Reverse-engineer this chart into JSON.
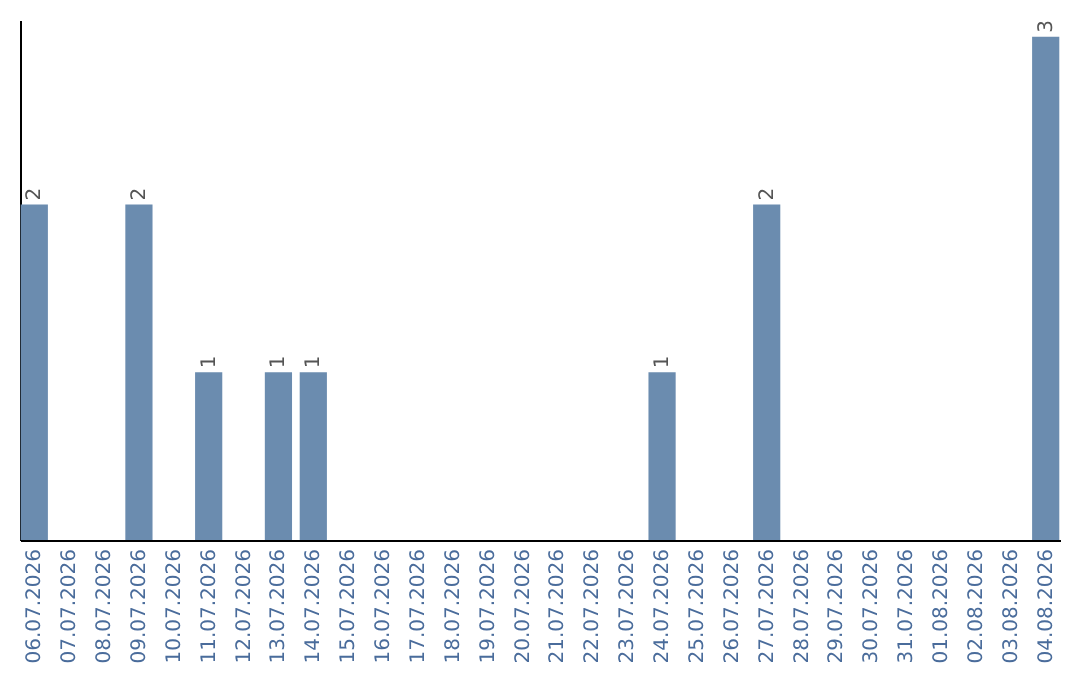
{
  "chart_data": {
    "type": "bar",
    "categories": [
      "06.07.2026",
      "07.07.2026",
      "08.07.2026",
      "09.07.2026",
      "10.07.2026",
      "11.07.2026",
      "12.07.2026",
      "13.07.2026",
      "14.07.2026",
      "15.07.2026",
      "16.07.2026",
      "17.07.2026",
      "18.07.2026",
      "19.07.2026",
      "20.07.2026",
      "21.07.2026",
      "22.07.2026",
      "23.07.2026",
      "24.07.2026",
      "25.07.2026",
      "26.07.2026",
      "27.07.2026",
      "28.07.2026",
      "29.07.2026",
      "30.07.2026",
      "31.07.2026",
      "01.08.2026",
      "02.08.2026",
      "03.08.2026",
      "04.08.2026"
    ],
    "values": [
      2,
      0,
      0,
      2,
      0,
      1,
      0,
      1,
      1,
      0,
      0,
      0,
      0,
      0,
      0,
      0,
      0,
      0,
      1,
      0,
      0,
      2,
      0,
      0,
      0,
      0,
      0,
      0,
      0,
      3
    ],
    "value_labels": [
      "2",
      null,
      null,
      "2",
      null,
      "1",
      null,
      "1",
      "1",
      null,
      null,
      null,
      null,
      null,
      null,
      null,
      null,
      null,
      "1",
      null,
      null,
      "2",
      null,
      null,
      null,
      null,
      null,
      null,
      null,
      "3"
    ],
    "color": "#6b8caf",
    "ylim": [
      0,
      3.1
    ],
    "tick_labels": "x"
  }
}
